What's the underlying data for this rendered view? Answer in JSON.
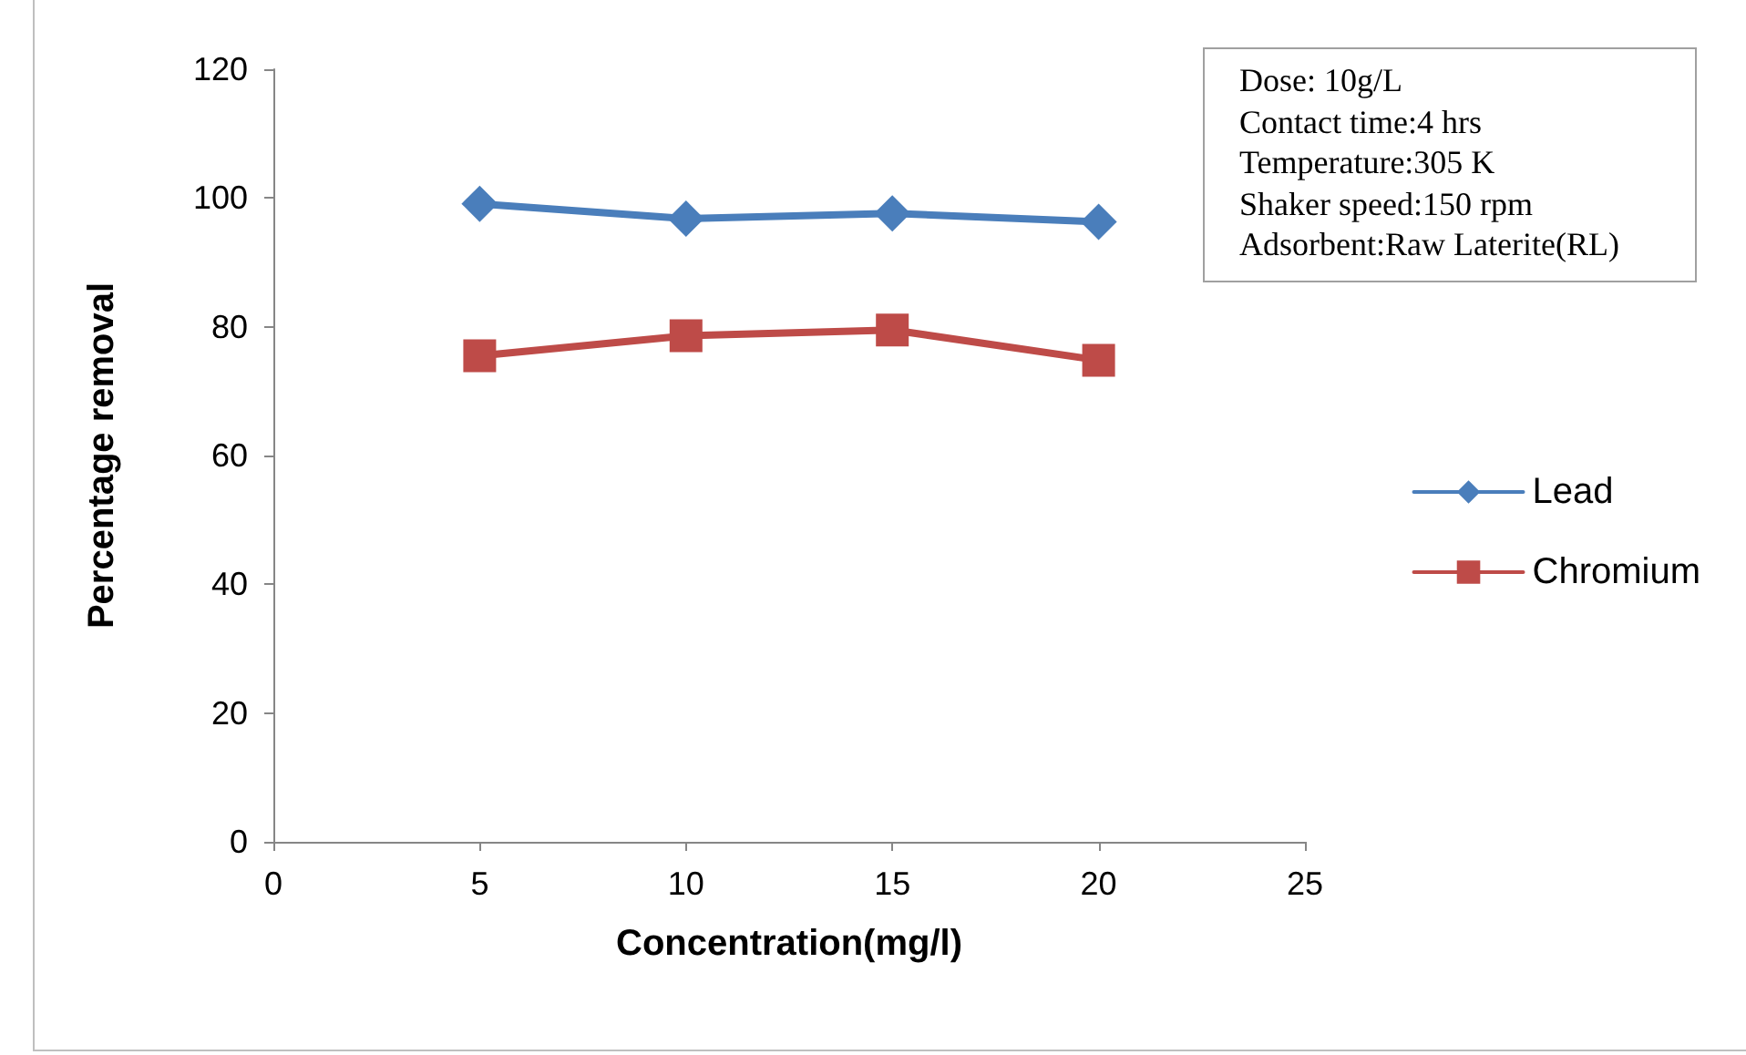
{
  "chart_data": {
    "type": "line",
    "xlabel": "Concentration(mg/l)",
    "ylabel": "Percentage removal",
    "x": [
      5,
      10,
      15,
      20
    ],
    "series": [
      {
        "name": "Lead",
        "color": "#4a7ebb",
        "marker": "diamond",
        "values": [
          99.1,
          96.8,
          97.6,
          96.3
        ]
      },
      {
        "name": "Chromium",
        "color": "#be4b48",
        "marker": "square",
        "values": [
          75.5,
          78.6,
          79.5,
          74.8
        ]
      }
    ],
    "xlim": [
      0,
      25
    ],
    "xticks": [
      0,
      5,
      10,
      15,
      20,
      25
    ],
    "ylim": [
      0,
      120
    ],
    "yticks": [
      0,
      20,
      40,
      60,
      80,
      100,
      120
    ],
    "grid": false,
    "legend": "right",
    "line_style": "solid",
    "annotations": [
      "Dose: 10g/L",
      "Contact time:4 hrs",
      "Temperature:305 K",
      "Shaker speed:150 rpm",
      "Adsorbent:Raw Laterite(RL)"
    ]
  }
}
